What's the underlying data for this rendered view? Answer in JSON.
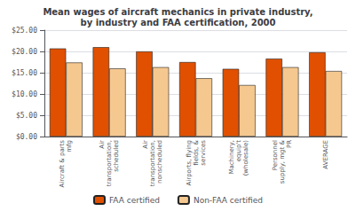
{
  "chart_data": {
    "type": "bar",
    "title": "Mean wages of aircraft mechanics in private industry,\nby industry and FAA certification, 2000",
    "categories": [
      "Aircraft & parts\nmfg",
      "Air\ntransportation,\nscheduled",
      "Air\ntransportation,\nnonscheduled",
      "Airports, flying\nfields, &\nservices",
      "Machinery,\nequip't\n(wholesale)",
      "Personnel\nsupply, mgt &\nPR",
      "AVERAGE"
    ],
    "series": [
      {
        "name": "FAA certified",
        "color": "#E05000",
        "values": [
          20.7,
          21.0,
          20.0,
          17.5,
          15.9,
          18.3,
          19.8
        ]
      },
      {
        "name": "Non-FAA certified",
        "color": "#F5C890",
        "values": [
          17.4,
          16.0,
          16.3,
          13.7,
          12.1,
          16.3,
          15.4
        ]
      }
    ],
    "ylim": [
      0,
      25
    ],
    "yticks": [
      {
        "value": 0,
        "label": "$0.00"
      },
      {
        "value": 5,
        "label": "$5.00"
      },
      {
        "value": 10,
        "label": "$10.00"
      },
      {
        "value": 15,
        "label": "$15.00"
      },
      {
        "value": 20,
        "label": "$20.00"
      },
      {
        "value": 25,
        "label": "$25.00"
      }
    ],
    "grid": true,
    "legend": "bottom"
  }
}
